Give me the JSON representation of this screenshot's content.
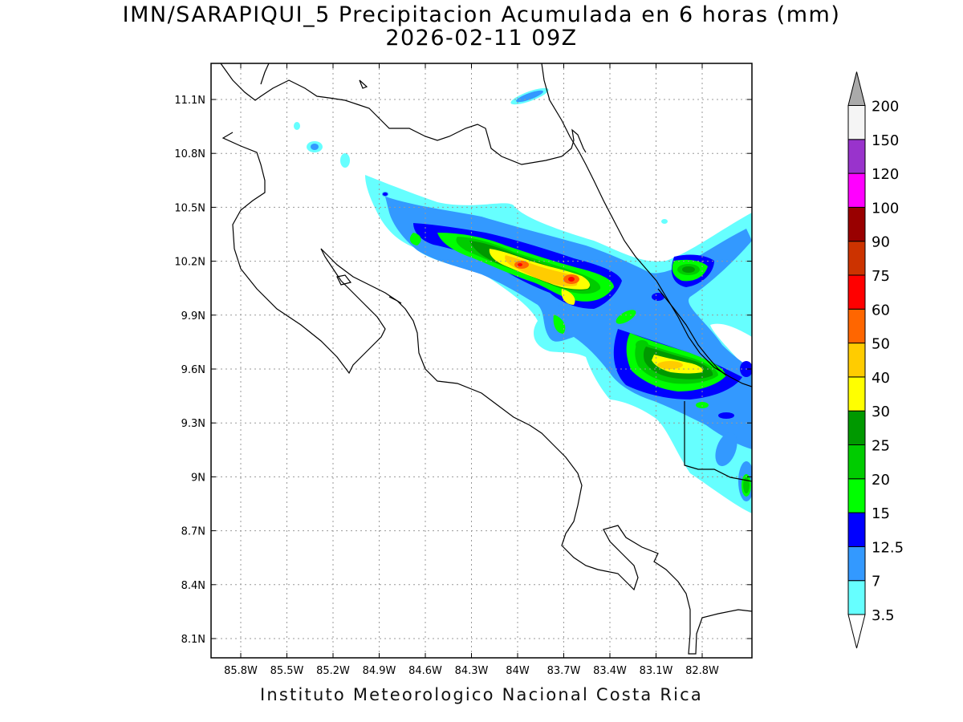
{
  "title": {
    "line1": "IMN/SARAPIQUI_5 Precipitacion Acumulada en 6 horas (mm)",
    "line2": "2026-02-11 09Z"
  },
  "credit": "Instituto Meteorologico Nacional Costa Rica",
  "map": {
    "x_ticks": [
      {
        "lon": -85.8,
        "label": "85.8W"
      },
      {
        "lon": -85.5,
        "label": "85.5W"
      },
      {
        "lon": -85.2,
        "label": "85.2W"
      },
      {
        "lon": -84.9,
        "label": "84.9W"
      },
      {
        "lon": -84.6,
        "label": "84.6W"
      },
      {
        "lon": -84.3,
        "label": "84.3W"
      },
      {
        "lon": -84.0,
        "label": "84W"
      },
      {
        "lon": -83.7,
        "label": "83.7W"
      },
      {
        "lon": -83.4,
        "label": "83.4W"
      },
      {
        "lon": -83.1,
        "label": "83.1W"
      },
      {
        "lon": -82.8,
        "label": "82.8W"
      }
    ],
    "y_ticks": [
      {
        "lat": 11.1,
        "label": "11.1N"
      },
      {
        "lat": 10.8,
        "label": "10.8N"
      },
      {
        "lat": 10.5,
        "label": "10.5N"
      },
      {
        "lat": 10.2,
        "label": "10.2N"
      },
      {
        "lat": 9.9,
        "label": "9.9N"
      },
      {
        "lat": 9.6,
        "label": "9.6N"
      },
      {
        "lat": 9.3,
        "label": "9.3N"
      },
      {
        "lat": 9.0,
        "label": "9N"
      },
      {
        "lat": 8.7,
        "label": "8.7N"
      },
      {
        "lat": 8.4,
        "label": "8.4N"
      },
      {
        "lat": 8.1,
        "label": "8.1N"
      }
    ]
  },
  "colorbar": {
    "levels": [
      {
        "label": "3.5",
        "color": "#66ffff"
      },
      {
        "label": "7",
        "color": "#3399ff"
      },
      {
        "label": "12.5",
        "color": "#0000ff"
      },
      {
        "label": "15",
        "color": "#00ff00"
      },
      {
        "label": "20",
        "color": "#00cc00"
      },
      {
        "label": "25",
        "color": "#009900"
      },
      {
        "label": "30",
        "color": "#ffff00"
      },
      {
        "label": "40",
        "color": "#ffcc00"
      },
      {
        "label": "50",
        "color": "#ff6600"
      },
      {
        "label": "60",
        "color": "#ff0000"
      },
      {
        "label": "75",
        "color": "#cc3300"
      },
      {
        "label": "90",
        "color": "#990000"
      },
      {
        "label": "100",
        "color": "#ff00ff"
      },
      {
        "label": "120",
        "color": "#9933cc"
      },
      {
        "label": "150",
        "color": "#f5f5f5"
      },
      {
        "label": "200",
        "color": "#aaaaaa"
      }
    ]
  }
}
